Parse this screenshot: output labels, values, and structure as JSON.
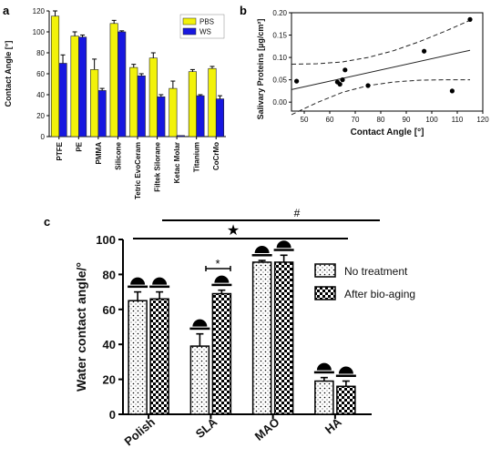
{
  "colors": {
    "pbs": "#f2f20a",
    "ws": "#1717e0",
    "axis": "#000000",
    "text": "#111111",
    "mark": "#000000"
  },
  "chart_data": [
    {
      "panel": "a",
      "type": "bar",
      "ylabel": "Contact Angle [°]",
      "ylim": [
        0,
        120
      ],
      "yticks": [
        0,
        20,
        40,
        60,
        80,
        100,
        120
      ],
      "legend_position": "top-right",
      "grid": false,
      "categories": [
        "PTFE",
        "PE",
        "PMMA",
        "Silicone",
        "Tetric EvoCeram",
        "Filtek Silorane",
        "Ketac Molar",
        "Titanium",
        "CoCrMo"
      ],
      "series": [
        {
          "name": "PBS",
          "color": "#f2f20a",
          "values": [
            115,
            96,
            64,
            108,
            66,
            75,
            46,
            62,
            65
          ],
          "errors": [
            5,
            4,
            10,
            3,
            3,
            5,
            7,
            2,
            2
          ]
        },
        {
          "name": "WS",
          "color": "#1717e0",
          "values": [
            70,
            95,
            44,
            100,
            58,
            38,
            1,
            39,
            36
          ],
          "errors": [
            8,
            2,
            2,
            1,
            2,
            2,
            0,
            1,
            3
          ]
        }
      ]
    },
    {
      "panel": "b",
      "type": "scatter",
      "xlabel": "Contact Angle [°]",
      "ylabel": "Salivary Proteins [µg/cm²]",
      "xlim": [
        45,
        120
      ],
      "ylim": [
        -0.02,
        0.2
      ],
      "xticks": [
        50,
        60,
        70,
        80,
        90,
        100,
        110,
        120
      ],
      "yticks": [
        0.0,
        0.05,
        0.1,
        0.15,
        0.2
      ],
      "ytick_labels": [
        "0.00",
        "0.05",
        "0.10",
        "0.15",
        "0.20"
      ],
      "grid": false,
      "points": [
        {
          "x": 47,
          "y": 0.047
        },
        {
          "x": 63,
          "y": 0.045
        },
        {
          "x": 64,
          "y": 0.04
        },
        {
          "x": 65,
          "y": 0.05
        },
        {
          "x": 66,
          "y": 0.072
        },
        {
          "x": 75,
          "y": 0.037
        },
        {
          "x": 97,
          "y": 0.114
        },
        {
          "x": 108,
          "y": 0.025
        },
        {
          "x": 115,
          "y": 0.185
        }
      ],
      "fit_line": {
        "x": [
          45,
          115
        ],
        "y": [
          0.028,
          0.116
        ]
      },
      "ci_upper": {
        "x": [
          45,
          55,
          65,
          75,
          85,
          95,
          105,
          115
        ],
        "y": [
          0.085,
          0.086,
          0.09,
          0.1,
          0.115,
          0.135,
          0.158,
          0.183
        ]
      },
      "ci_lower": {
        "x": [
          45,
          55,
          65,
          75,
          85,
          95,
          105,
          115
        ],
        "y": [
          -0.028,
          -0.001,
          0.022,
          0.037,
          0.045,
          0.049,
          0.05,
          0.05
        ]
      }
    },
    {
      "panel": "c",
      "type": "bar",
      "ylabel": "Water contact angle/°",
      "ylim": [
        0,
        100
      ],
      "yticks": [
        0,
        20,
        40,
        60,
        80,
        100
      ],
      "legend_position": "right",
      "grid": false,
      "categories": [
        "Polish",
        "SLA",
        "MAO",
        "HA"
      ],
      "series": [
        {
          "name": "No treatment",
          "pattern": "dots",
          "values": [
            65,
            39,
            87,
            19
          ],
          "errors": [
            5,
            7,
            1,
            2
          ]
        },
        {
          "name": "After bio-aging",
          "pattern": "checker",
          "values": [
            66,
            69,
            87,
            16
          ],
          "errors": [
            4,
            2,
            4,
            3
          ]
        }
      ],
      "annotations": {
        "star": "★",
        "hash": "#",
        "asterisk": "*"
      }
    }
  ],
  "panel_labels": {
    "a": "a",
    "b": "b",
    "c": "c"
  }
}
